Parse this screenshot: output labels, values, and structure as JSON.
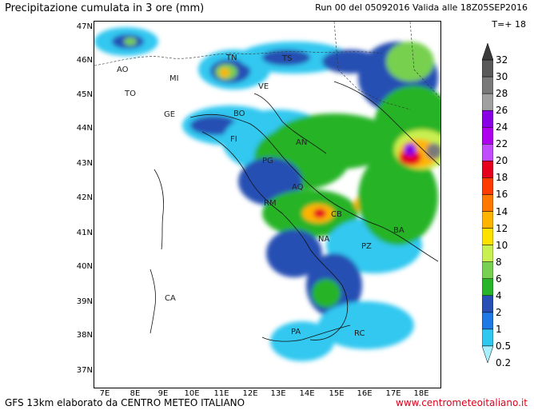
{
  "header": {
    "title": "Precipitazione cumulata in 3 ore (mm)",
    "run_info": "Run 00 del 05092016  Valida alle 18Z05SEP2016",
    "timestep": "T=+ 18"
  },
  "footer": {
    "model_info": "GFS 13km elaborato da CENTRO METEO ITALIANO",
    "website": "www.centrometeoitaliano.it",
    "website_color": "#e0001a"
  },
  "axes": {
    "latitudes": [
      "47N",
      "46N",
      "45N",
      "44N",
      "43N",
      "42N",
      "41N",
      "40N",
      "39N",
      "38N",
      "37N"
    ],
    "longitudes": [
      "7E",
      "8E",
      "9E",
      "10E",
      "11E",
      "12E",
      "13E",
      "14E",
      "15E",
      "16E",
      "17E",
      "18E"
    ]
  },
  "cities": [
    {
      "name": "AO"
    },
    {
      "name": "TO"
    },
    {
      "name": "MI"
    },
    {
      "name": "GE"
    },
    {
      "name": "TN"
    },
    {
      "name": "VE"
    },
    {
      "name": "BO"
    },
    {
      "name": "FI"
    },
    {
      "name": "AN"
    },
    {
      "name": "PG"
    },
    {
      "name": "AQ"
    },
    {
      "name": "RM"
    },
    {
      "name": "CB"
    },
    {
      "name": "NA"
    },
    {
      "name": "BA"
    },
    {
      "name": "PZ"
    },
    {
      "name": "CA"
    },
    {
      "name": "PA"
    },
    {
      "name": "RC"
    },
    {
      "name": "TS"
    }
  ],
  "legend": {
    "levels": [
      "32",
      "30",
      "28",
      "26",
      "24",
      "22",
      "20",
      "18",
      "16",
      "14",
      "12",
      "10",
      "8",
      "6",
      "4",
      "2",
      "1",
      "0.5",
      "0.2"
    ],
    "colors": [
      "#3a3a3a",
      "#5a5a5a",
      "#7a7a7a",
      "#a0a0a0",
      "#8a00e6",
      "#b000f0",
      "#c24cff",
      "#e6001e",
      "#ff3c00",
      "#ff7800",
      "#ffb400",
      "#ffe100",
      "#c8f050",
      "#78d050",
      "#28b428",
      "#2850b4",
      "#1e78e6",
      "#30c8f0",
      "#a8f0ff"
    ]
  }
}
